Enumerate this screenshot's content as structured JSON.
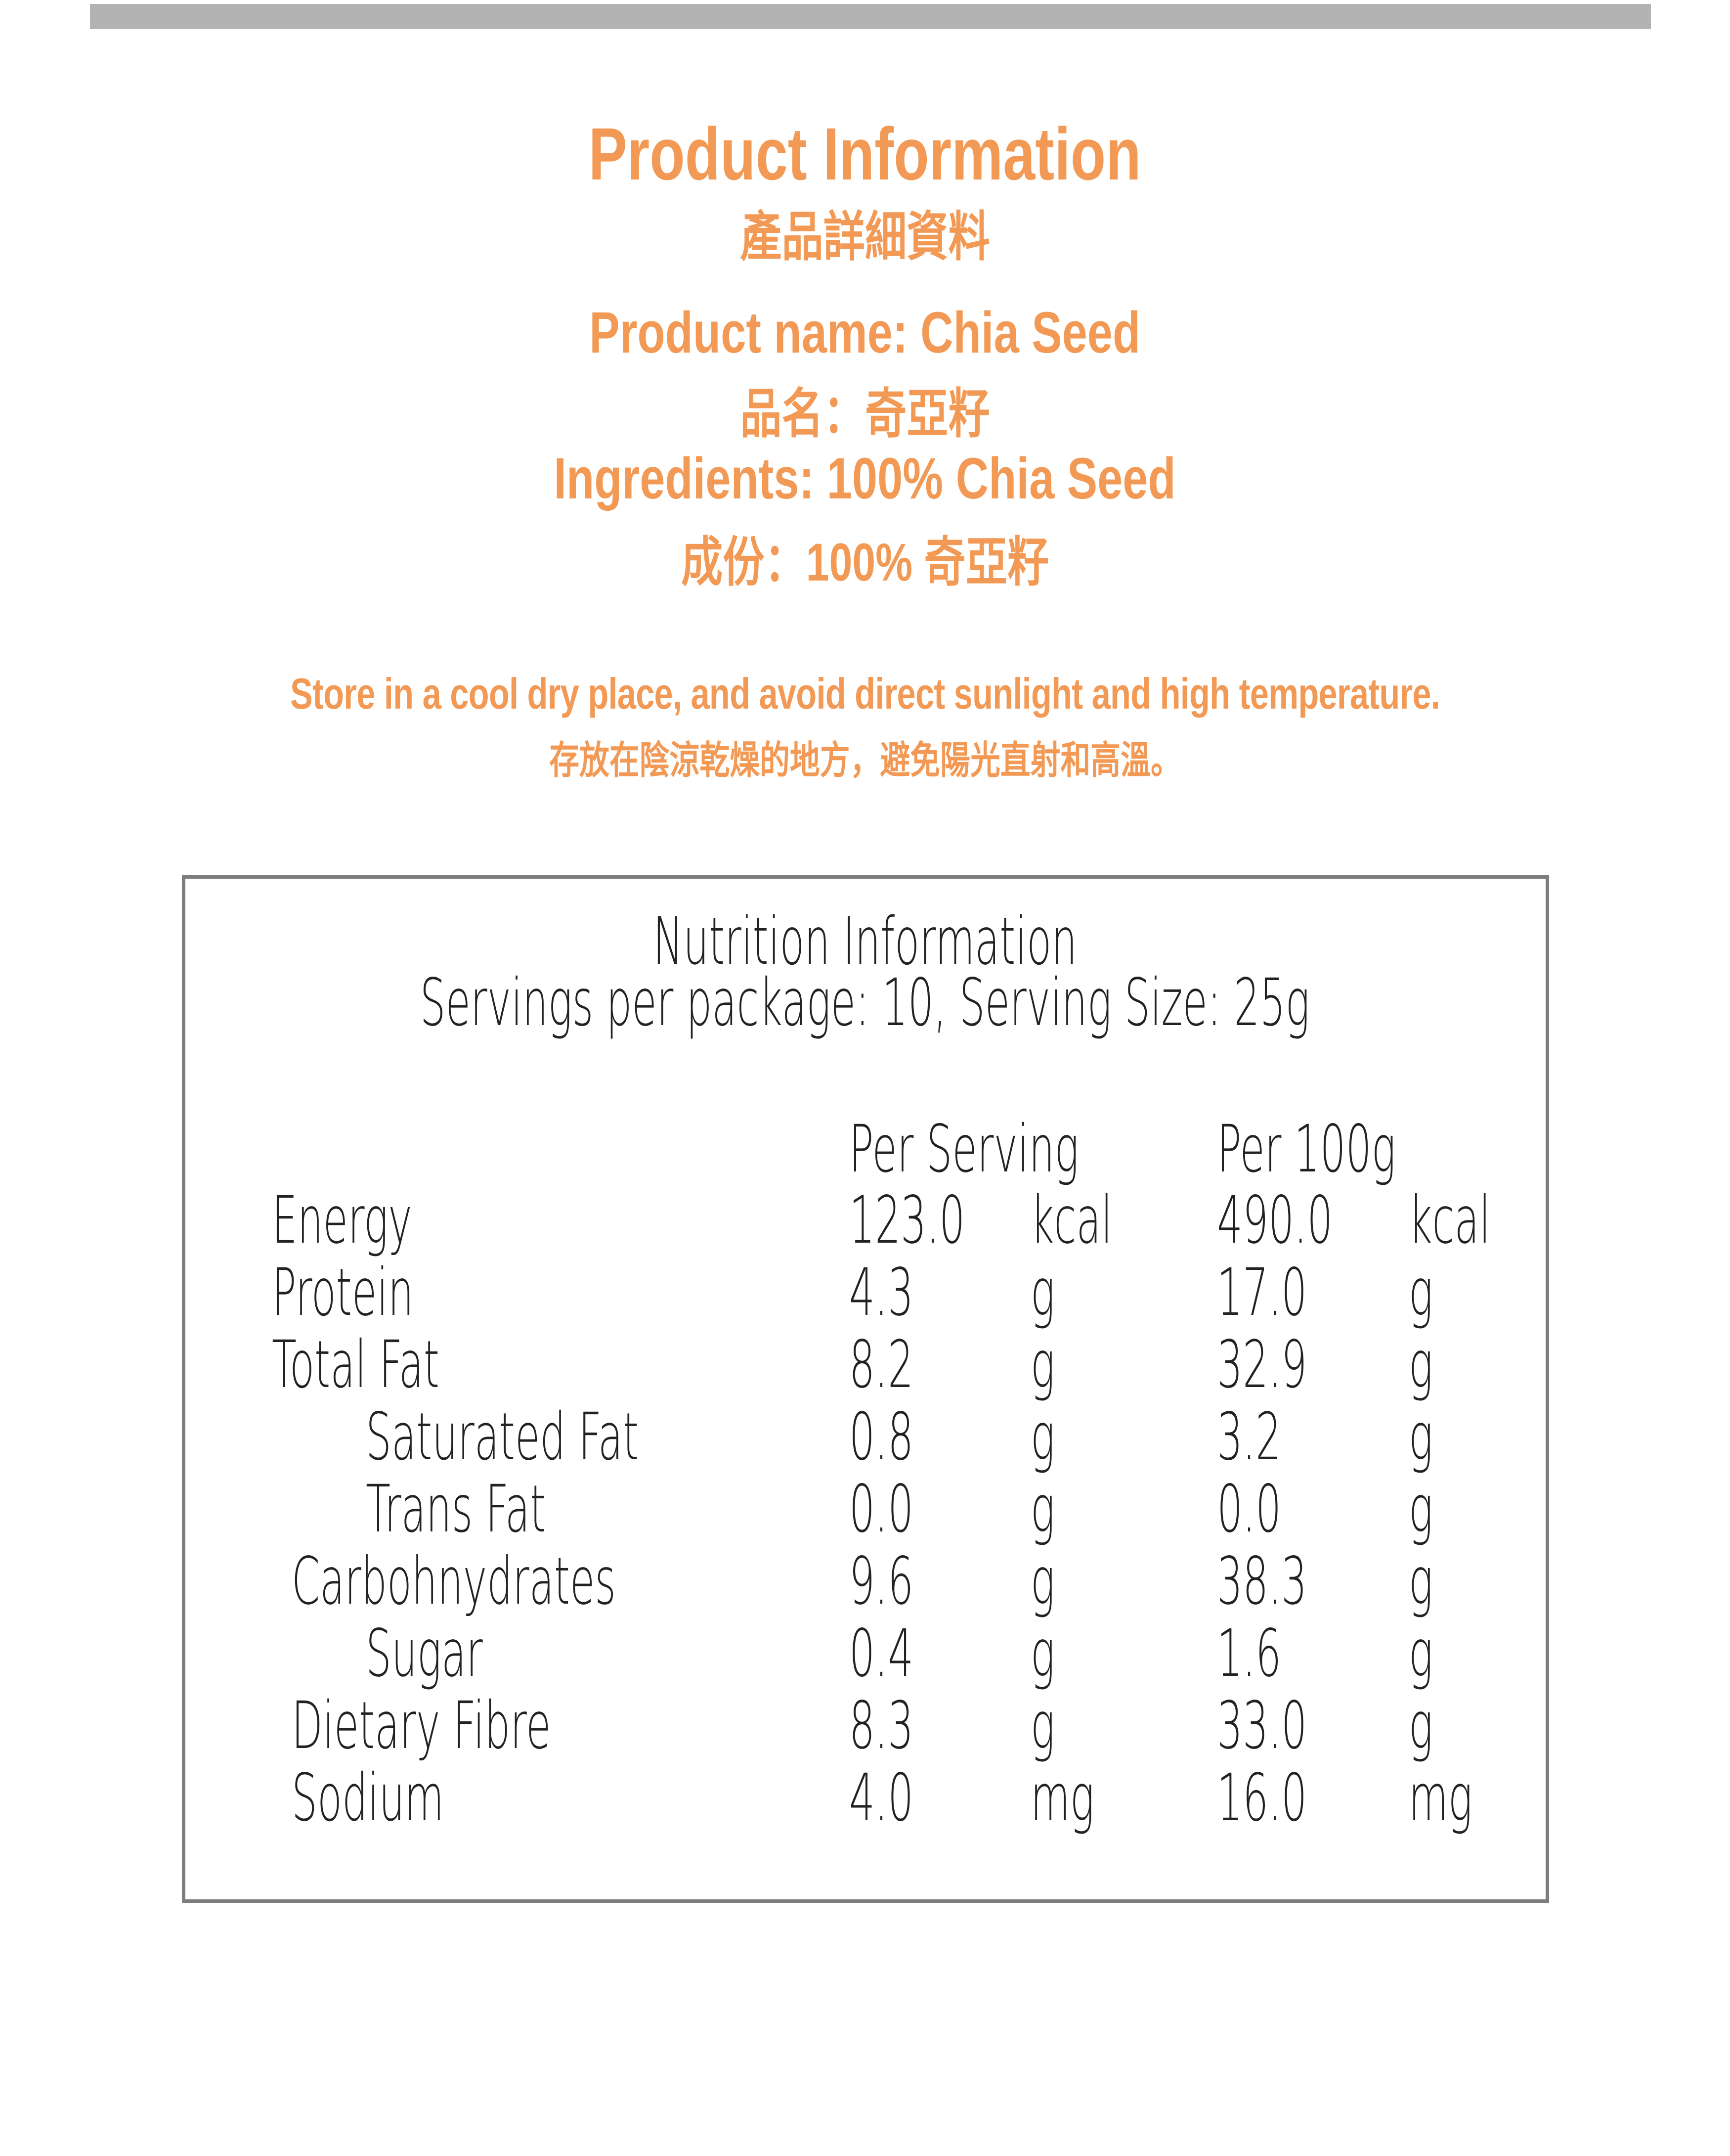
{
  "title": "Product Information",
  "title_zh": "產品詳細資料",
  "product_name": "Product name: Chia Seed",
  "product_name_zh": "品名：奇亞籽",
  "ingredients": "Ingredients: 100% Chia Seed",
  "ingredients_zh": "成份：100% 奇亞籽",
  "storage": "Store in a cool dry place, and avoid direct sunlight and high temperature.",
  "storage_zh": "存放在陰涼乾燥的地方，避免陽光直射和高溫。",
  "colors": {
    "accent": "#f29a55",
    "bar": "#b3b3b3",
    "border": "#7d7d7d"
  },
  "nutrition": {
    "heading": "Nutrition Information",
    "servings": "Servings per package: 10, Serving Size: 25g",
    "col_per_serving": "Per Serving",
    "col_per_100g": "Per 100g",
    "rows": [
      {
        "label": "Energy",
        "indent": 0,
        "serving": "123.0",
        "serving_unit": "kcal",
        "per100": "490.0",
        "per100_unit": "kcal"
      },
      {
        "label": "Protein",
        "indent": 0,
        "serving": "4.3",
        "serving_unit": "g",
        "per100": "17.0",
        "per100_unit": "g"
      },
      {
        "label": "Total Fat",
        "indent": 0,
        "serving": "8.2",
        "serving_unit": "g",
        "per100": "32.9",
        "per100_unit": "g"
      },
      {
        "label": "Saturated Fat",
        "indent": 2,
        "serving": "0.8",
        "serving_unit": "g",
        "per100": "3.2",
        "per100_unit": "g"
      },
      {
        "label": "Trans Fat",
        "indent": 2,
        "serving": "0.0",
        "serving_unit": "g",
        "per100": "0.0",
        "per100_unit": "g"
      },
      {
        "label": "Carbohnydrates",
        "indent": 1,
        "serving": "9.6",
        "serving_unit": "g",
        "per100": "38.3",
        "per100_unit": "g"
      },
      {
        "label": "Sugar",
        "indent": 2,
        "serving": "0.4",
        "serving_unit": "g",
        "per100": "1.6",
        "per100_unit": "g"
      },
      {
        "label": "Dietary Fibre",
        "indent": 1,
        "serving": "8.3",
        "serving_unit": "g",
        "per100": "33.0",
        "per100_unit": "g"
      },
      {
        "label": "Sodium",
        "indent": 1,
        "serving": "4.0",
        "serving_unit": "mg",
        "per100": "16.0",
        "per100_unit": "mg"
      }
    ]
  }
}
